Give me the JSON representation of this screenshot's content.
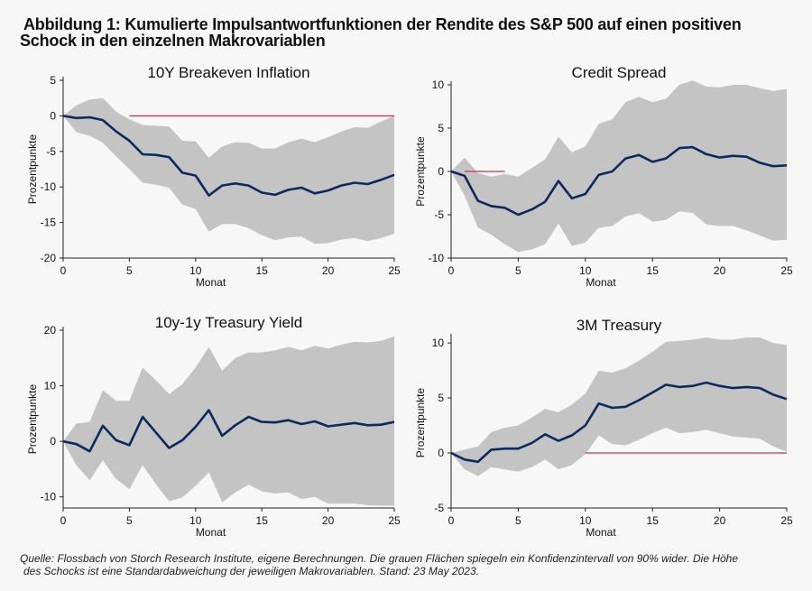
{
  "figure": {
    "title_line1": "Abbildung 1: Kumulierte Impulsantwortfunktionen der Rendite des S&P 500 auf einen positiven",
    "title_line2": "Schock in den einzelnen Makrovariablen",
    "source_line1": "Quelle: Flossbach von Storch Research Institute, eigene Berechnungen. Die grauen Flächen spiegeln ein Konfidenzintervall von 90% wider. Die Höhe",
    "source_line2": "des Schocks ist eine Standardabweichung der jeweiligen Makrovariablen. Stand: 23 May 2023."
  },
  "colors": {
    "line": "#0d2a5c",
    "band": "#c4c4c4",
    "zero": "#c0375a",
    "background": "#f7f7f7"
  },
  "chart_data": [
    {
      "type": "line",
      "title": "10Y Breakeven Inflation",
      "xlabel": "Monat",
      "ylabel": "Prozentpunkte",
      "xlim": [
        0,
        25
      ],
      "ylim": [
        -20,
        5
      ],
      "xticks": [
        0,
        5,
        10,
        15,
        20,
        25
      ],
      "yticks": [
        5,
        0,
        -5,
        -10,
        -15,
        -20
      ],
      "zero_line_from": 5,
      "x": [
        0,
        1,
        2,
        3,
        4,
        5,
        6,
        7,
        8,
        9,
        10,
        11,
        12,
        13,
        14,
        15,
        16,
        17,
        18,
        19,
        20,
        21,
        22,
        23,
        24,
        25
      ],
      "series": [
        {
          "name": "Impulsantwort",
          "values": [
            0,
            -0.3,
            -0.2,
            -0.6,
            -2.2,
            -3.5,
            -5.4,
            -5.5,
            -5.8,
            -8,
            -8.4,
            -11.2,
            -9.8,
            -9.5,
            -9.8,
            -10.8,
            -11.1,
            -10.4,
            -10.1,
            -10.9,
            -10.5,
            -9.8,
            -9.4,
            -9.6,
            -9,
            -8.3
          ]
        },
        {
          "name": "Obere Grenze (90%)",
          "values": [
            0,
            1.5,
            2.3,
            2.5,
            0.6,
            -0.5,
            -1.3,
            -1.4,
            -1.5,
            -3.5,
            -3.6,
            -5.9,
            -4.3,
            -3.7,
            -3.8,
            -4.6,
            -4.6,
            -3.7,
            -3.2,
            -3.7,
            -3,
            -2.2,
            -1.6,
            -1.7,
            -0.8,
            0
          ]
        },
        {
          "name": "Untere Grenze (90%)",
          "values": [
            0,
            -2.3,
            -2.8,
            -3.8,
            -5.7,
            -7.5,
            -9.4,
            -9.7,
            -10.1,
            -12.5,
            -13.1,
            -16.3,
            -15.2,
            -15.2,
            -15.8,
            -16.8,
            -17.5,
            -17.1,
            -17,
            -18,
            -17.9,
            -17.4,
            -17.2,
            -17.6,
            -17.2,
            -16.6
          ]
        }
      ]
    },
    {
      "type": "line",
      "title": "Credit Spread",
      "xlabel": "Monat",
      "ylabel": "Prozentpunkte",
      "xlim": [
        0,
        25
      ],
      "ylim": [
        -10,
        10
      ],
      "xticks": [
        0,
        5,
        10,
        15,
        20,
        25
      ],
      "yticks": [
        10,
        5,
        0,
        -5,
        -10
      ],
      "zero_line_from": 1,
      "zero_line_to": 4,
      "x": [
        0,
        1,
        2,
        3,
        4,
        5,
        6,
        7,
        8,
        9,
        10,
        11,
        12,
        13,
        14,
        15,
        16,
        17,
        18,
        19,
        20,
        21,
        22,
        23,
        24,
        25
      ],
      "series": [
        {
          "name": "Impulsantwort",
          "values": [
            0,
            -0.5,
            -3.4,
            -4,
            -4.2,
            -5,
            -4.4,
            -3.5,
            -1.1,
            -3.1,
            -2.6,
            -0.4,
            0,
            1.5,
            1.9,
            1.1,
            1.5,
            2.7,
            2.8,
            2,
            1.6,
            1.8,
            1.7,
            1,
            0.6,
            0.7
          ]
        },
        {
          "name": "Obere Grenze (90%)",
          "values": [
            0,
            1.6,
            -0.2,
            -0.6,
            -0.3,
            -0.6,
            0.4,
            1.4,
            4,
            2.2,
            2.9,
            5.5,
            6,
            8,
            8.6,
            8,
            8.4,
            10,
            10.5,
            9.8,
            9.7,
            10,
            10,
            9.6,
            9.3,
            9.5
          ]
        },
        {
          "name": "Untere Grenze (90%)",
          "values": [
            0,
            -2.8,
            -6.5,
            -7.3,
            -8.4,
            -9.3,
            -9,
            -8.4,
            -6,
            -8.6,
            -8.2,
            -6.5,
            -6.3,
            -5.2,
            -4.8,
            -5.8,
            -5.6,
            -4.6,
            -4.8,
            -6.1,
            -6.3,
            -6.3,
            -6.8,
            -7.4,
            -8,
            -7.9
          ]
        }
      ]
    },
    {
      "type": "line",
      "title": "10y-1y Treasury Yield",
      "xlabel": "Monat",
      "ylabel": "Prozentpunkte",
      "xlim": [
        0,
        25
      ],
      "ylim": [
        -12,
        20
      ],
      "xticks": [
        0,
        5,
        10,
        15,
        20,
        25
      ],
      "yticks": [
        20,
        10,
        0,
        -10
      ],
      "x": [
        0,
        1,
        2,
        3,
        4,
        5,
        6,
        7,
        8,
        9,
        10,
        11,
        12,
        13,
        14,
        15,
        16,
        17,
        18,
        19,
        20,
        21,
        22,
        23,
        24,
        25
      ],
      "series": [
        {
          "name": "Impulsantwort",
          "values": [
            0,
            -0.5,
            -1.8,
            2.8,
            0.2,
            -0.7,
            4.4,
            1.6,
            -1.2,
            0.2,
            2.6,
            5.6,
            1,
            2.9,
            4.4,
            3.5,
            3.4,
            3.8,
            3.1,
            3.6,
            2.7,
            3,
            3.3,
            2.9,
            3,
            3.5
          ]
        },
        {
          "name": "Obere Grenze (90%)",
          "values": [
            0,
            3.2,
            3.5,
            9.2,
            7.3,
            7.3,
            13.3,
            11,
            8.5,
            10.3,
            13.3,
            17,
            12.7,
            15,
            16,
            16,
            16.4,
            17,
            16.4,
            17.2,
            16.7,
            17.4,
            17.9,
            17.8,
            18.1,
            18.9
          ]
        },
        {
          "name": "Untere Grenze (90%)",
          "values": [
            0,
            -4.3,
            -7,
            -3.4,
            -6.8,
            -8.6,
            -4.3,
            -7.7,
            -10.8,
            -10.1,
            -8,
            -5.6,
            -11,
            -9.2,
            -7.8,
            -9,
            -9.4,
            -9.2,
            -10.4,
            -10,
            -11.2,
            -11.2,
            -11.2,
            -11.5,
            -11.6,
            -11.6
          ]
        }
      ]
    },
    {
      "type": "line",
      "title": "3M Treasury",
      "xlabel": "Monat",
      "ylabel": "Prozentpunkte",
      "xlim": [
        0,
        25
      ],
      "ylim": [
        -5,
        10.5
      ],
      "xticks": [
        0,
        5,
        10,
        15,
        20,
        25
      ],
      "yticks": [
        10,
        5,
        0,
        -5
      ],
      "zero_line_from": 10,
      "x": [
        0,
        1,
        2,
        3,
        4,
        5,
        6,
        7,
        8,
        9,
        10,
        11,
        12,
        13,
        14,
        15,
        16,
        17,
        18,
        19,
        20,
        21,
        22,
        23,
        24,
        25
      ],
      "series": [
        {
          "name": "Impulsantwort",
          "values": [
            0,
            -0.6,
            -0.8,
            0.3,
            0.4,
            0.4,
            0.9,
            1.7,
            1.1,
            1.6,
            2.5,
            4.5,
            4.1,
            4.2,
            4.8,
            5.5,
            6.2,
            6,
            6.1,
            6.4,
            6.1,
            5.9,
            6,
            5.9,
            5.3,
            4.9
          ]
        },
        {
          "name": "Obere Grenze (90%)",
          "values": [
            0,
            0.3,
            0.6,
            1.9,
            2.3,
            2.5,
            3.2,
            4,
            3.7,
            4.4,
            5.4,
            7.5,
            7.3,
            7.7,
            8.4,
            9.2,
            10.1,
            10.2,
            10.3,
            10.5,
            10.3,
            10.3,
            10.5,
            10.5,
            10,
            9.8
          ]
        },
        {
          "name": "Untere Grenze (90%)",
          "values": [
            0,
            -1.5,
            -2.1,
            -1.3,
            -1.5,
            -1.7,
            -1.3,
            -0.6,
            -1.5,
            -1.1,
            -0.1,
            1.6,
            0.8,
            0.7,
            1.2,
            1.8,
            2.3,
            1.8,
            1.9,
            2.1,
            1.8,
            1.5,
            1.4,
            1.3,
            0.6,
            0.1
          ]
        }
      ]
    }
  ]
}
